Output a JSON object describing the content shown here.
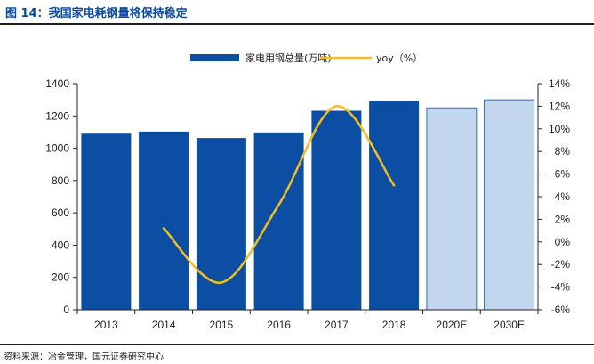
{
  "figure": {
    "title": "图 14：我国家电耗钢量将保持稳定",
    "source": "资料来源：冶金管理，国元证券研究中心"
  },
  "colors": {
    "title": "#0a4aa0",
    "bar_actual": "#0c4ea4",
    "bar_estimate": "#c2d6ee",
    "bar_estimate_border": "#0c4ea4",
    "line": "#f5bd1f",
    "axis": "#222222"
  },
  "chart_data": {
    "type": "bar",
    "categories": [
      "2013",
      "2014",
      "2015",
      "2016",
      "2017",
      "2018",
      "2020E",
      "2030E"
    ],
    "series": [
      {
        "name": "家电用钢总量(万吨)",
        "type": "bar",
        "axis": "left",
        "values": [
          1090,
          1103,
          1063,
          1098,
          1232,
          1293,
          1250,
          1300
        ],
        "estimated": [
          false,
          false,
          false,
          false,
          false,
          false,
          true,
          true
        ]
      },
      {
        "name": "yoy（%）",
        "type": "line",
        "axis": "right",
        "smooth": true,
        "values": [
          null,
          1.2,
          -3.6,
          3.3,
          12.0,
          5.0,
          null,
          null
        ]
      }
    ],
    "y_left": {
      "lim": [
        0,
        1400
      ],
      "ticks": [
        0,
        200,
        400,
        600,
        800,
        1000,
        1200,
        1400
      ],
      "tick_labels": [
        "0",
        "200",
        "400",
        "600",
        "800",
        "1000",
        "1200",
        "1400"
      ]
    },
    "y_right": {
      "lim": [
        -6,
        14
      ],
      "ticks": [
        -6,
        -4,
        -2,
        0,
        2,
        4,
        6,
        8,
        10,
        12,
        14
      ],
      "tick_labels": [
        "-6%",
        "-4%",
        "-2%",
        "0%",
        "2%",
        "4%",
        "6%",
        "8%",
        "10%",
        "12%",
        "14%"
      ]
    },
    "grid": false,
    "legend_position": "top"
  }
}
